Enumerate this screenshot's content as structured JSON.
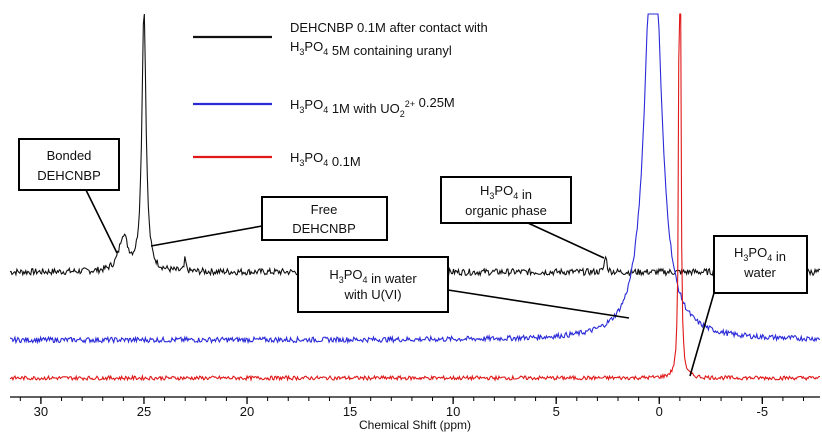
{
  "chart_data": {
    "type": "line",
    "xlabel": "Chemical Shift (ppm)",
    "xlim": [
      31.5,
      -7.8
    ],
    "x_ticks": [
      30,
      25,
      20,
      15,
      10,
      5,
      0,
      -5
    ],
    "x_tick_labels": [
      "30",
      "25",
      "20",
      "15",
      "10",
      "5",
      "0",
      "-5"
    ],
    "grid": false,
    "legend_position": "top-center",
    "series": [
      {
        "name": "DEHCNBP 0.1M after contact with H3PO4 5M containing uranyl",
        "name_lines": [
          "DEHCNBP 0.1M after contact with",
          "H3PO4 5M containing uranyl"
        ],
        "color": "#111111",
        "baseline": 0.0,
        "noise": 0.05,
        "peaks": [
          {
            "x": 26.0,
            "height": 1.6,
            "width": 0.25,
            "label": "Bonded DEHCNBP"
          },
          {
            "x": 25.0,
            "height": 12.0,
            "width": 0.12,
            "label": "Free DEHCNBP"
          },
          {
            "x": 23.0,
            "height": 0.6,
            "width": 0.04
          },
          {
            "x": 2.6,
            "height": 0.8,
            "width": 0.06,
            "label": "H3PO4 in organic phase"
          }
        ]
      },
      {
        "name": "H3PO4 1M with UO2 2+ 0.25M",
        "color": "#2a2ad8",
        "baseline": 0.0,
        "noise": 0.04,
        "peaks": [
          {
            "x": 0.3,
            "height": 20.0,
            "width": 0.45,
            "label": "H3PO4 in water with U(VI)"
          }
        ]
      },
      {
        "name": "H3PO4 0.1M",
        "color": "#e01818",
        "baseline": 0.0,
        "noise": 0.03,
        "peaks": [
          {
            "x": -1.0,
            "height": 60.0,
            "width": 0.03,
            "label": "H3PO4 in water"
          }
        ]
      }
    ],
    "legend": [
      {
        "lines": [
          "DEHCNBP 0.1M after contact with",
          "H3PO4 5M containing uranyl"
        ]
      },
      {
        "lines": [
          "H3PO4 1M with UO2 2+ 0.25M"
        ]
      },
      {
        "lines": [
          "H3PO4 0.1M"
        ]
      }
    ],
    "annotations": [
      {
        "id": "bonded",
        "lines": [
          "Bonded",
          "DEHCNBP"
        ]
      },
      {
        "id": "free",
        "lines": [
          "Free",
          "DEHCNBP"
        ]
      },
      {
        "id": "org",
        "lines": [
          "H3PO4 in",
          "organic phase"
        ]
      },
      {
        "id": "water-u",
        "lines": [
          "H3PO4 in water",
          "with U(VI)"
        ]
      },
      {
        "id": "water",
        "lines": [
          "H3PO4 in",
          "water"
        ]
      }
    ]
  }
}
